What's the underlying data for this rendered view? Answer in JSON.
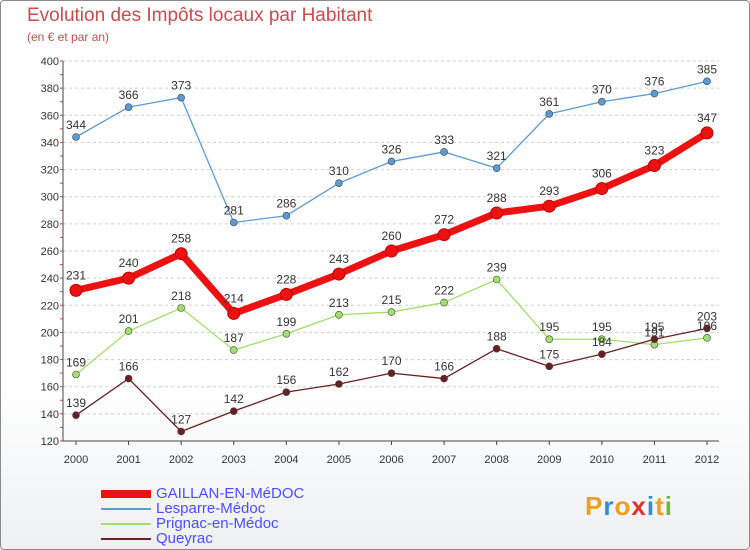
{
  "header": {
    "title": "Evolution des Impôts locaux par Habitant",
    "subtitle": "(en € et par an)"
  },
  "chart_data": {
    "type": "line",
    "title": "Evolution des Impôts locaux par Habitant",
    "subtitle": "(en € et par an)",
    "xlabel": "",
    "ylabel": "",
    "x": [
      "2000",
      "2001",
      "2002",
      "2003",
      "2004",
      "2005",
      "2006",
      "2007",
      "2008",
      "2009",
      "2010",
      "2011",
      "2012"
    ],
    "ylim": [
      120,
      400
    ],
    "yticks": [
      120,
      140,
      160,
      180,
      200,
      220,
      240,
      260,
      280,
      300,
      320,
      340,
      360,
      380,
      400
    ],
    "grid": "horizontal dashed",
    "legend_position": "bottom-left",
    "series": [
      {
        "name": "GAILLAN-EN-MéDOC",
        "color": "#ee1111",
        "values": [
          231,
          240,
          258,
          214,
          228,
          243,
          260,
          272,
          288,
          293,
          306,
          323,
          347
        ],
        "labels": [
          "231",
          "240",
          "258",
          "214",
          "228",
          "243",
          "260",
          "272",
          "288",
          "293",
          "306",
          "323",
          "347"
        ]
      },
      {
        "name": "Lesparre-Médoc",
        "color": "#5b9bd5",
        "values": [
          344,
          366,
          373,
          281,
          286,
          310,
          326,
          333,
          321,
          361,
          370,
          376,
          385
        ],
        "labels": [
          "344",
          "366",
          "373",
          "281",
          "286",
          "310",
          "326",
          "333",
          "321",
          "361",
          "370",
          "376",
          "385"
        ]
      },
      {
        "name": "Prignac-en-Médoc",
        "color": "#9ee06a",
        "values": [
          169,
          201,
          218,
          187,
          199,
          213,
          215,
          222,
          239,
          195,
          195,
          191,
          196
        ],
        "labels": [
          "169",
          "201",
          "218",
          "187",
          "199",
          "213",
          "215",
          "222",
          "239",
          "195",
          "195",
          "191",
          "196"
        ]
      },
      {
        "name": "Queyrac",
        "color": "#6b2020",
        "values": [
          139,
          166,
          127,
          142,
          156,
          162,
          170,
          166,
          188,
          175,
          184,
          195,
          203
        ],
        "labels": [
          "139",
          "166",
          "127",
          "142",
          "156",
          "162",
          "170",
          "166",
          "188",
          "175",
          "184",
          "195",
          "203"
        ]
      }
    ]
  },
  "legend": [
    {
      "label": "GAILLAN-EN-MéDOC",
      "color": "#ee1111"
    },
    {
      "label": "Lesparre-Médoc",
      "color": "#5b9bd5"
    },
    {
      "label": "Prignac-en-Médoc",
      "color": "#9ee06a"
    },
    {
      "label": "Queyrac",
      "color": "#6b2020"
    }
  ],
  "logo": {
    "letters": [
      "P",
      "r",
      "o",
      "x",
      "i",
      "t",
      "i"
    ],
    "colors": [
      "#f0a020",
      "#2a90d8",
      "#f0a020",
      "#e03030",
      "#2a90d8",
      "#f0a020",
      "#70b83a"
    ]
  }
}
